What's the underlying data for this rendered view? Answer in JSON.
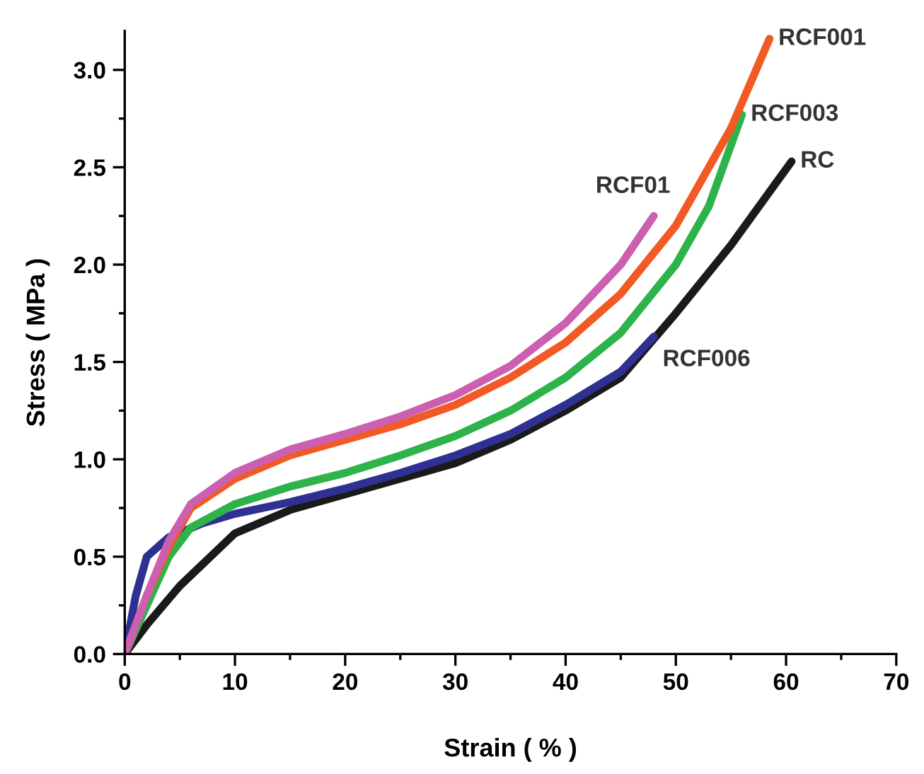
{
  "chart_data": {
    "type": "line",
    "xlabel": "Strain ( % )",
    "ylabel": "Stress ( MPa )",
    "xlim": [
      0,
      70
    ],
    "ylim": [
      0,
      3.2
    ],
    "xticks": [
      0,
      10,
      20,
      30,
      40,
      50,
      60,
      70
    ],
    "yticks": [
      {
        "value": 0,
        "label": "0.0"
      },
      {
        "value": 0.5,
        "label": "0.5"
      },
      {
        "value": 1,
        "label": "1.0"
      },
      {
        "value": 1.5,
        "label": "1.5"
      },
      {
        "value": 2,
        "label": "2.0"
      },
      {
        "value": 2.5,
        "label": "2.5"
      },
      {
        "value": 3,
        "label": "3.0"
      }
    ],
    "grid": false,
    "legend": false,
    "marker": "none",
    "line_style": "solid",
    "series": [
      {
        "name": "RC",
        "color": "#1a1a1a",
        "x": [
          0,
          2,
          5,
          10,
          15,
          20,
          25,
          30,
          35,
          40,
          45,
          50,
          55,
          60.5
        ],
        "values": [
          0,
          0.15,
          0.35,
          0.62,
          0.74,
          0.82,
          0.9,
          0.98,
          1.1,
          1.25,
          1.42,
          1.75,
          2.1,
          2.53
        ]
      },
      {
        "name": "RCF006",
        "color": "#2e3192",
        "x": [
          0,
          1,
          2,
          4,
          7,
          10,
          15,
          20,
          25,
          30,
          35,
          40,
          45,
          48
        ],
        "values": [
          0,
          0.3,
          0.5,
          0.6,
          0.67,
          0.72,
          0.78,
          0.85,
          0.93,
          1.02,
          1.13,
          1.28,
          1.45,
          1.63
        ]
      },
      {
        "name": "RCF003",
        "color": "#2db34a",
        "x": [
          0,
          2,
          4,
          6,
          10,
          15,
          20,
          25,
          30,
          35,
          40,
          45,
          50,
          53,
          56
        ],
        "values": [
          0,
          0.25,
          0.5,
          0.65,
          0.77,
          0.86,
          0.93,
          1.02,
          1.12,
          1.25,
          1.42,
          1.65,
          2.0,
          2.3,
          2.77
        ]
      },
      {
        "name": "RCF001",
        "color": "#f15a24",
        "x": [
          0,
          2,
          4,
          6,
          10,
          15,
          20,
          25,
          30,
          35,
          40,
          45,
          50,
          55,
          58.5
        ],
        "values": [
          0,
          0.3,
          0.55,
          0.75,
          0.9,
          1.02,
          1.1,
          1.18,
          1.28,
          1.42,
          1.6,
          1.85,
          2.2,
          2.7,
          3.16
        ]
      },
      {
        "name": "RCF01",
        "color": "#cc5fb0",
        "x": [
          0,
          2,
          4,
          6,
          10,
          15,
          20,
          25,
          30,
          35,
          40,
          45,
          48
        ],
        "values": [
          0,
          0.3,
          0.58,
          0.77,
          0.93,
          1.05,
          1.13,
          1.22,
          1.33,
          1.48,
          1.7,
          2.0,
          2.25
        ]
      }
    ]
  }
}
